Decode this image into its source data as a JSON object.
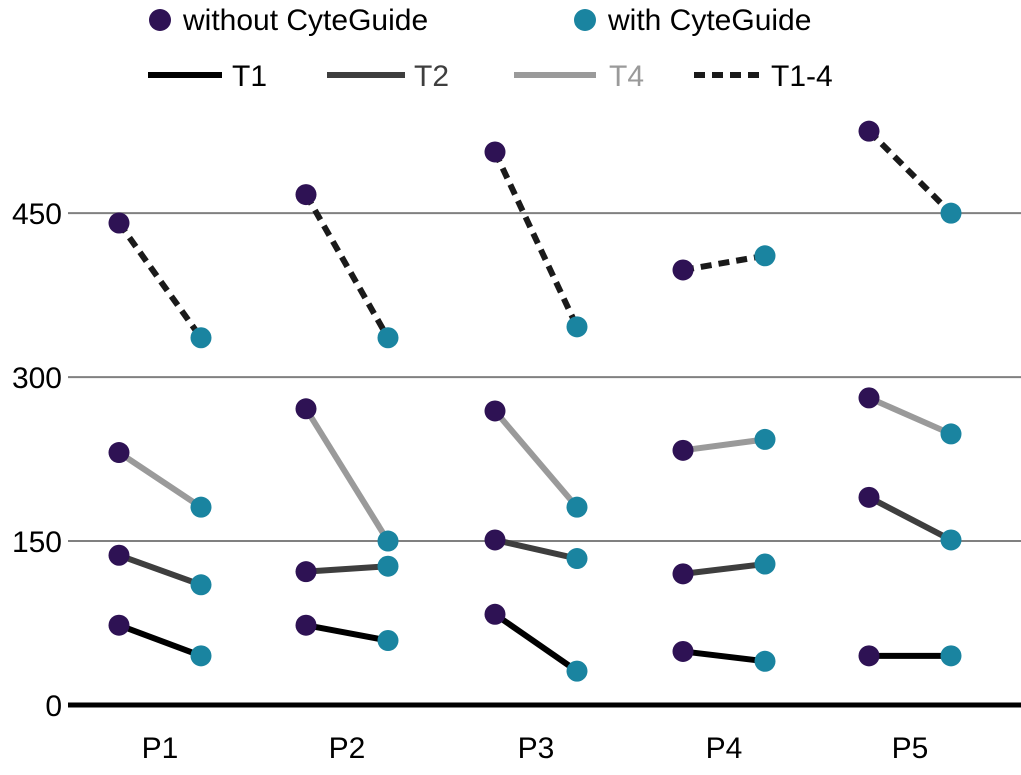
{
  "chart_data": {
    "type": "line",
    "categories": [
      "P1",
      "P2",
      "P3",
      "P4",
      "P5"
    ],
    "yticks": [
      0,
      150,
      300,
      450
    ],
    "ylim": [
      0,
      540
    ],
    "grid": "horizontal",
    "legend": {
      "placement": "top-center",
      "markers": [
        {
          "label": "without CyteGuide",
          "color": "#2e1254"
        },
        {
          "label": "with CyteGuide",
          "color": "#1a84a0"
        }
      ],
      "lines": [
        {
          "label": "T1",
          "color": "#000000",
          "dash": "solid",
          "text_color": "#000000"
        },
        {
          "label": "T2",
          "color": "#3e3e3e",
          "dash": "solid",
          "text_color": "#3e3e3e"
        },
        {
          "label": "T4",
          "color": "#9a9a9a",
          "dash": "solid",
          "text_color": "#9a9a9a"
        },
        {
          "label": "T1-4",
          "color": "#1a1a1a",
          "dash": "dashed",
          "text_color": "#000000"
        }
      ]
    },
    "series": [
      {
        "name": "T1",
        "without": [
          73,
          73,
          83,
          49,
          45
        ],
        "with": [
          45,
          59,
          31,
          40,
          45
        ]
      },
      {
        "name": "T2",
        "without": [
          137,
          122,
          151,
          120,
          190
        ],
        "with": [
          110,
          127,
          134,
          129,
          151
        ]
      },
      {
        "name": "T4",
        "without": [
          231,
          271,
          269,
          233,
          281
        ],
        "with": [
          181,
          150,
          181,
          243,
          248
        ]
      },
      {
        "name": "T1-4",
        "without": [
          441,
          467,
          506,
          398,
          525
        ],
        "with": [
          336,
          336,
          346,
          411,
          450
        ]
      }
    ]
  }
}
